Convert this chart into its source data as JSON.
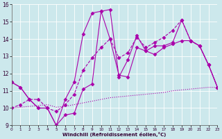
{
  "xlabel": "Windchill (Refroidissement éolien,°C)",
  "xlim": [
    0,
    23
  ],
  "ylim": [
    9,
    16
  ],
  "xticks": [
    0,
    1,
    2,
    3,
    4,
    5,
    6,
    7,
    8,
    9,
    10,
    11,
    12,
    13,
    14,
    15,
    16,
    17,
    18,
    19,
    20,
    21,
    22,
    23
  ],
  "yticks": [
    9,
    10,
    11,
    12,
    13,
    14,
    15,
    16
  ],
  "bg_color": "#cce8ec",
  "line_color": "#aa00aa",
  "grid_color": "#ffffff",
  "series": [
    {
      "x": [
        0,
        1,
        2,
        3,
        4,
        5,
        6,
        7,
        8,
        9,
        10,
        11,
        12,
        13,
        14,
        15,
        16,
        17,
        18,
        19,
        20,
        21,
        22,
        23
      ],
      "y": [
        11.5,
        11.2,
        10.5,
        10.0,
        10.0,
        9.0,
        9.6,
        9.7,
        11.1,
        11.4,
        15.6,
        15.7,
        11.8,
        12.8,
        14.2,
        13.3,
        13.1,
        13.5,
        13.7,
        13.9,
        13.9,
        13.6,
        12.5,
        11.2
      ],
      "style": "-",
      "marker": "D",
      "markersize": 2.5,
      "linewidth": 0.8
    },
    {
      "x": [
        0,
        1,
        2,
        3,
        4,
        5,
        6,
        7,
        8,
        9,
        10,
        11,
        12,
        13,
        14,
        15,
        16,
        17,
        18,
        19,
        20,
        21,
        22,
        23
      ],
      "y": [
        10.0,
        10.05,
        10.1,
        10.15,
        10.2,
        10.05,
        10.1,
        10.2,
        10.3,
        10.4,
        10.5,
        10.6,
        10.65,
        10.7,
        10.75,
        10.8,
        10.85,
        10.9,
        11.0,
        11.05,
        11.1,
        11.15,
        11.2,
        11.2
      ],
      "style": ":",
      "marker": null,
      "markersize": 0,
      "linewidth": 0.8
    },
    {
      "x": [
        0,
        1,
        2,
        3,
        4,
        5,
        6,
        7,
        8,
        9,
        10,
        11,
        12,
        13,
        14,
        15,
        16,
        17,
        18,
        19,
        20,
        21,
        22,
        23
      ],
      "y": [
        10.0,
        10.2,
        10.5,
        10.5,
        10.0,
        9.8,
        10.2,
        10.8,
        12.2,
        12.9,
        13.5,
        14.0,
        12.9,
        13.2,
        14.1,
        13.5,
        13.8,
        14.1,
        14.5,
        15.1,
        13.9,
        13.6,
        12.5,
        11.2
      ],
      "style": "--",
      "marker": "D",
      "markersize": 2.5,
      "linewidth": 0.8
    },
    {
      "x": [
        0,
        1,
        2,
        3,
        4,
        5,
        6,
        7,
        8,
        9,
        10,
        11,
        12,
        13,
        14,
        15,
        16,
        17,
        18,
        19,
        20,
        21,
        22,
        23
      ],
      "y": [
        11.5,
        11.2,
        10.5,
        10.0,
        10.0,
        9.0,
        10.5,
        11.5,
        14.3,
        15.5,
        15.6,
        14.0,
        11.9,
        11.8,
        13.5,
        13.3,
        13.6,
        13.6,
        13.8,
        15.1,
        13.9,
        13.6,
        12.5,
        11.2
      ],
      "style": "-",
      "marker": "D",
      "markersize": 2.5,
      "linewidth": 0.8
    }
  ]
}
